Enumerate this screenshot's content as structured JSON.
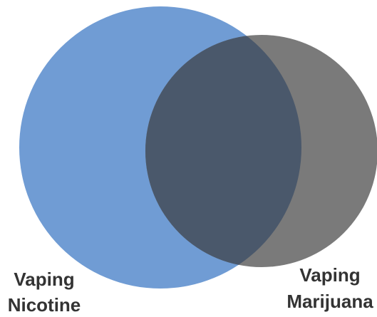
{
  "sets": [
    {
      "label": [
        "Vaping",
        "Nicotine"
      ]
    },
    {
      "label": [
        "Vaping",
        "Marijuana"
      ]
    }
  ]
}
